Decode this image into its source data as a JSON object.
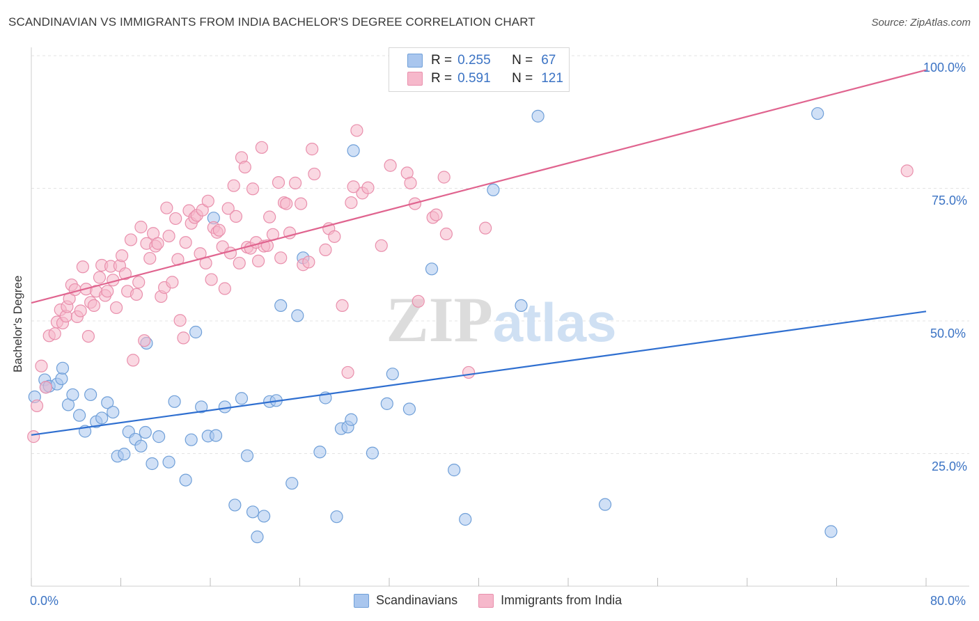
{
  "title": "SCANDINAVIAN VS IMMIGRANTS FROM INDIA BACHELOR'S DEGREE CORRELATION CHART",
  "source": "Source: ZipAtlas.com",
  "watermark": "ZIPatlas",
  "legend": {
    "rows": [
      {
        "r_label": "R =",
        "r_value": "0.255",
        "n_label": "N =",
        "n_value": "67"
      },
      {
        "r_label": "R =",
        "r_value": "0.591",
        "n_label": "N =",
        "n_value": "121"
      }
    ]
  },
  "bottom_legend": [
    "Scandinavians",
    "Immigrants from India"
  ],
  "axis": {
    "y_title": "Bachelor's Degree",
    "x_min_label": "0.0%",
    "x_max_label": "80.0%",
    "y_ticks": [
      "25.0%",
      "50.0%",
      "75.0%",
      "100.0%"
    ]
  },
  "colors": {
    "blue_fill": "#a9c6ee",
    "blue_stroke": "#6f9fd8",
    "blue_line": "#2f6fd0",
    "pink_fill": "#f6b8cb",
    "pink_stroke": "#e98fac",
    "pink_line": "#e0648f",
    "tick_text": "#3b73c4",
    "grid": "#e3e3e3"
  },
  "chart_data": {
    "type": "scatter",
    "xlim": [
      0,
      80
    ],
    "ylim": [
      0,
      100
    ],
    "xlabel": "",
    "ylabel": "Bachelor's Degree",
    "grid": true,
    "legend_position": "top-center",
    "series": [
      {
        "name": "Scandinavians",
        "r": 0.255,
        "n": 67,
        "trend": {
          "x": [
            0,
            80
          ],
          "y": [
            28.5,
            51.8
          ]
        },
        "points": [
          [
            0.3,
            35.7
          ],
          [
            1.2,
            38.9
          ],
          [
            1.3,
            37.5
          ],
          [
            1.6,
            37.7
          ],
          [
            2.3,
            38.1
          ],
          [
            2.7,
            39.1
          ],
          [
            2.8,
            41.1
          ],
          [
            3.3,
            34.2
          ],
          [
            3.7,
            36.1
          ],
          [
            4.3,
            32.2
          ],
          [
            4.8,
            29.2
          ],
          [
            5.3,
            36.1
          ],
          [
            5.8,
            31.0
          ],
          [
            6.3,
            31.7
          ],
          [
            6.8,
            34.6
          ],
          [
            7.3,
            32.8
          ],
          [
            7.7,
            24.5
          ],
          [
            8.3,
            24.9
          ],
          [
            8.7,
            29.1
          ],
          [
            9.3,
            27.7
          ],
          [
            9.8,
            26.4
          ],
          [
            10.3,
            45.8
          ],
          [
            10.8,
            23.1
          ],
          [
            11.4,
            28.2
          ],
          [
            12.3,
            23.4
          ],
          [
            12.8,
            34.8
          ],
          [
            13.8,
            20.0
          ],
          [
            14.3,
            27.6
          ],
          [
            14.7,
            47.9
          ],
          [
            15.2,
            33.8
          ],
          [
            15.8,
            28.3
          ],
          [
            16.3,
            69.4
          ],
          [
            17.3,
            33.8
          ],
          [
            18.2,
            15.3
          ],
          [
            18.8,
            35.4
          ],
          [
            19.3,
            24.6
          ],
          [
            19.8,
            14.0
          ],
          [
            20.2,
            9.3
          ],
          [
            20.8,
            13.2
          ],
          [
            21.3,
            34.8
          ],
          [
            21.9,
            35.0
          ],
          [
            22.3,
            52.9
          ],
          [
            23.3,
            19.4
          ],
          [
            23.8,
            51.0
          ],
          [
            24.3,
            61.9
          ],
          [
            25.8,
            25.3
          ],
          [
            26.3,
            35.5
          ],
          [
            27.3,
            13.1
          ],
          [
            27.7,
            29.7
          ],
          [
            28.3,
            30.0
          ],
          [
            28.6,
            31.4
          ],
          [
            28.8,
            82.1
          ],
          [
            30.5,
            25.1
          ],
          [
            31.8,
            34.4
          ],
          [
            32.3,
            40.0
          ],
          [
            33.8,
            33.4
          ],
          [
            35.8,
            59.8
          ],
          [
            37.8,
            21.9
          ],
          [
            38.8,
            12.6
          ],
          [
            41.3,
            74.7
          ],
          [
            43.8,
            52.9
          ],
          [
            45.3,
            88.6
          ],
          [
            51.3,
            15.4
          ],
          [
            70.3,
            89.1
          ],
          [
            71.5,
            10.3
          ],
          [
            10.2,
            29.0
          ],
          [
            16.5,
            28.4
          ]
        ]
      },
      {
        "name": "Immigrants from India",
        "r": 0.591,
        "n": 121,
        "trend": {
          "x": [
            0,
            80
          ],
          "y": [
            53.4,
            97.3
          ]
        },
        "points": [
          [
            0.2,
            28.2
          ],
          [
            0.5,
            34.0
          ],
          [
            0.9,
            41.5
          ],
          [
            1.3,
            37.5
          ],
          [
            1.6,
            47.2
          ],
          [
            2.1,
            47.6
          ],
          [
            2.3,
            49.8
          ],
          [
            2.6,
            52.1
          ],
          [
            2.8,
            49.6
          ],
          [
            3.1,
            50.9
          ],
          [
            3.2,
            52.7
          ],
          [
            3.4,
            54.2
          ],
          [
            3.6,
            56.8
          ],
          [
            3.9,
            55.9
          ],
          [
            4.1,
            50.8
          ],
          [
            4.4,
            51.9
          ],
          [
            4.6,
            60.2
          ],
          [
            4.9,
            56.0
          ],
          [
            5.1,
            47.1
          ],
          [
            5.3,
            53.5
          ],
          [
            5.6,
            52.9
          ],
          [
            5.8,
            55.6
          ],
          [
            6.1,
            58.2
          ],
          [
            6.3,
            60.5
          ],
          [
            6.6,
            54.8
          ],
          [
            6.8,
            55.6
          ],
          [
            7.1,
            60.3
          ],
          [
            7.3,
            57.7
          ],
          [
            7.6,
            52.5
          ],
          [
            7.9,
            60.4
          ],
          [
            8.1,
            62.3
          ],
          [
            8.4,
            58.9
          ],
          [
            8.6,
            55.6
          ],
          [
            8.9,
            65.3
          ],
          [
            9.1,
            42.6
          ],
          [
            9.4,
            55.0
          ],
          [
            9.6,
            57.3
          ],
          [
            9.8,
            67.7
          ],
          [
            10.1,
            46.3
          ],
          [
            10.3,
            64.6
          ],
          [
            10.6,
            61.8
          ],
          [
            10.9,
            66.5
          ],
          [
            11.1,
            64.1
          ],
          [
            11.3,
            64.6
          ],
          [
            11.6,
            54.6
          ],
          [
            11.9,
            56.3
          ],
          [
            12.1,
            71.3
          ],
          [
            12.3,
            66.0
          ],
          [
            12.6,
            57.3
          ],
          [
            12.9,
            69.3
          ],
          [
            13.1,
            61.6
          ],
          [
            13.3,
            50.1
          ],
          [
            13.6,
            46.8
          ],
          [
            13.8,
            64.8
          ],
          [
            14.1,
            70.8
          ],
          [
            14.3,
            68.4
          ],
          [
            14.6,
            69.5
          ],
          [
            14.8,
            69.9
          ],
          [
            15.1,
            62.7
          ],
          [
            15.3,
            70.9
          ],
          [
            15.6,
            60.9
          ],
          [
            15.8,
            72.6
          ],
          [
            16.1,
            57.8
          ],
          [
            16.3,
            67.6
          ],
          [
            16.6,
            66.7
          ],
          [
            16.8,
            67.1
          ],
          [
            17.1,
            64.0
          ],
          [
            17.3,
            56.1
          ],
          [
            17.6,
            71.2
          ],
          [
            17.8,
            62.8
          ],
          [
            18.1,
            75.5
          ],
          [
            18.3,
            69.7
          ],
          [
            18.6,
            60.9
          ],
          [
            18.8,
            80.8
          ],
          [
            19.1,
            79.0
          ],
          [
            19.3,
            63.9
          ],
          [
            19.6,
            63.7
          ],
          [
            19.8,
            74.9
          ],
          [
            20.1,
            64.8
          ],
          [
            20.3,
            61.3
          ],
          [
            20.6,
            82.7
          ],
          [
            20.8,
            64.1
          ],
          [
            21.1,
            64.2
          ],
          [
            21.3,
            69.6
          ],
          [
            21.6,
            66.3
          ],
          [
            22.1,
            76.1
          ],
          [
            22.3,
            61.9
          ],
          [
            22.6,
            72.3
          ],
          [
            23.1,
            66.6
          ],
          [
            23.6,
            76.0
          ],
          [
            24.1,
            72.1
          ],
          [
            24.3,
            60.6
          ],
          [
            24.8,
            61.1
          ],
          [
            25.1,
            82.4
          ],
          [
            25.3,
            77.7
          ],
          [
            26.6,
            67.4
          ],
          [
            27.1,
            65.9
          ],
          [
            27.8,
            52.9
          ],
          [
            28.3,
            40.3
          ],
          [
            28.6,
            72.3
          ],
          [
            29.1,
            85.9
          ],
          [
            29.6,
            74.1
          ],
          [
            30.1,
            75.1
          ],
          [
            31.3,
            64.2
          ],
          [
            32.1,
            79.3
          ],
          [
            33.6,
            77.9
          ],
          [
            33.9,
            76.0
          ],
          [
            34.3,
            72.1
          ],
          [
            34.6,
            53.7
          ],
          [
            35.9,
            69.5
          ],
          [
            36.2,
            70.0
          ],
          [
            36.9,
            77.1
          ],
          [
            37.1,
            66.4
          ],
          [
            39.1,
            40.3
          ],
          [
            40.6,
            67.5
          ],
          [
            78.3,
            78.3
          ],
          [
            28.8,
            75.3
          ],
          [
            26.3,
            63.4
          ],
          [
            22.8,
            72.1
          ]
        ]
      }
    ]
  }
}
